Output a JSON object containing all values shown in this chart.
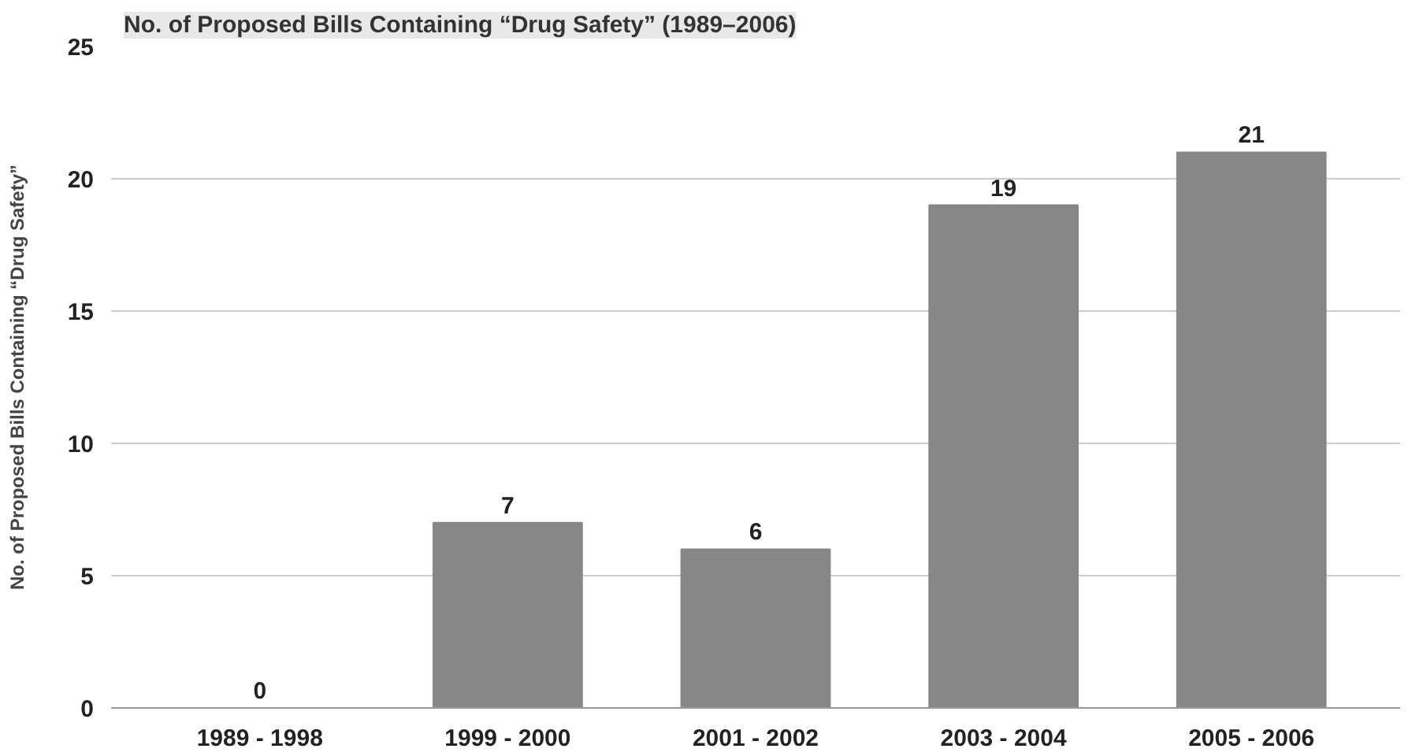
{
  "chart_data": {
    "type": "bar",
    "title": "No. of Proposed Bills Containing “Drug Safety” (1989–2006)",
    "ylabel": "No. of Proposed Bills Containing “Drug Safety”",
    "categories": [
      "1989 - 1998",
      "1999 - 2000",
      "2001 - 2002",
      "2003 - 2004",
      "2005 - 2006"
    ],
    "values": [
      0,
      7,
      6,
      19,
      21
    ],
    "color": "#878787",
    "ylim": [
      0,
      25
    ],
    "yticks": [
      0,
      5,
      10,
      15,
      20,
      25
    ],
    "grid": "y",
    "data_labels": true
  }
}
